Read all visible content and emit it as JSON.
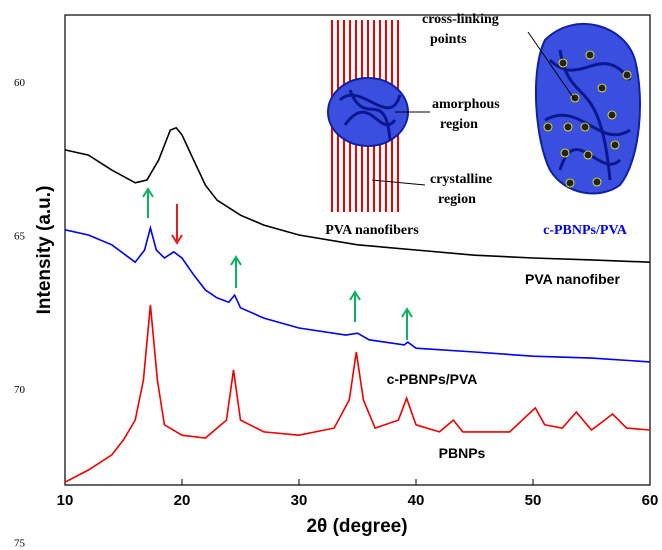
{
  "chart_data": {
    "type": "line",
    "x_label": "2θ (degree)",
    "y_label": "Intensity (a.u.)",
    "xlim": [
      10,
      60
    ],
    "xticks": [
      10,
      20,
      30,
      40,
      50,
      60
    ],
    "ylim": [
      0,
      100
    ],
    "line_numbers": [
      60,
      65,
      70,
      75
    ],
    "series": [
      {
        "name": "PVA nanofiber",
        "color": "#000000",
        "x": [
          10,
          12,
          14,
          16,
          17,
          18,
          19,
          19.5,
          20,
          21,
          22,
          23,
          25,
          27,
          30,
          35,
          40,
          45,
          50,
          55,
          60
        ],
        "values": [
          71.3,
          70.2,
          67.0,
          64.3,
          64.9,
          69.1,
          75.5,
          76.0,
          74.5,
          69.1,
          63.8,
          60.6,
          57.4,
          55.3,
          53.2,
          51.1,
          50.0,
          48.9,
          48.3,
          47.9,
          47.4
        ]
      },
      {
        "name": "c-PBNPs/PVA",
        "color": "#0000ee",
        "x": [
          10,
          12,
          14,
          16,
          16.8,
          17.3,
          17.8,
          18.5,
          19.3,
          20,
          21,
          22,
          23,
          24,
          24.5,
          25,
          27,
          30,
          34,
          35,
          36,
          39,
          39.3,
          40,
          45,
          50,
          55,
          60
        ],
        "values": [
          54.3,
          53.2,
          51.1,
          47.4,
          50.0,
          54.7,
          50.0,
          48.3,
          49.6,
          48.3,
          44.7,
          41.5,
          39.8,
          38.9,
          40.4,
          37.7,
          35.5,
          33.4,
          31.9,
          32.3,
          30.9,
          29.8,
          30.4,
          29.1,
          28.3,
          27.4,
          27.0,
          26.2
        ]
      },
      {
        "name": "PBNPs",
        "color": "#ee0000",
        "x": [
          10,
          12,
          14,
          15,
          16,
          16.7,
          17.3,
          17.9,
          18.5,
          20,
          22,
          23.8,
          24.4,
          25,
          27,
          30,
          33,
          34.3,
          34.9,
          35.5,
          36.5,
          38.5,
          39.2,
          40,
          42,
          43.2,
          44,
          48,
          50.2,
          51,
          52.5,
          53.7,
          55,
          56.8,
          58,
          60
        ],
        "values": [
          0.6,
          3.2,
          6.4,
          9.6,
          13.8,
          22.3,
          38.3,
          22.3,
          12.8,
          10.6,
          10.0,
          13.8,
          24.5,
          13.8,
          11.3,
          10.6,
          12.1,
          18.1,
          28.3,
          18.1,
          12.1,
          13.8,
          18.5,
          12.8,
          11.3,
          13.8,
          11.3,
          11.3,
          16.4,
          12.8,
          12.1,
          15.5,
          11.7,
          15.1,
          12.1,
          11.7
        ]
      }
    ],
    "annotations": {
      "pva_nanofibers": "PVA nanofibers",
      "c_pbnps_pva": "c-PBNPs/PVA",
      "cross_linking": [
        "cross-linking",
        "points"
      ],
      "amorphous": [
        "amorphous",
        "region"
      ],
      "crystalline": [
        "crystalline",
        "region"
      ]
    }
  }
}
